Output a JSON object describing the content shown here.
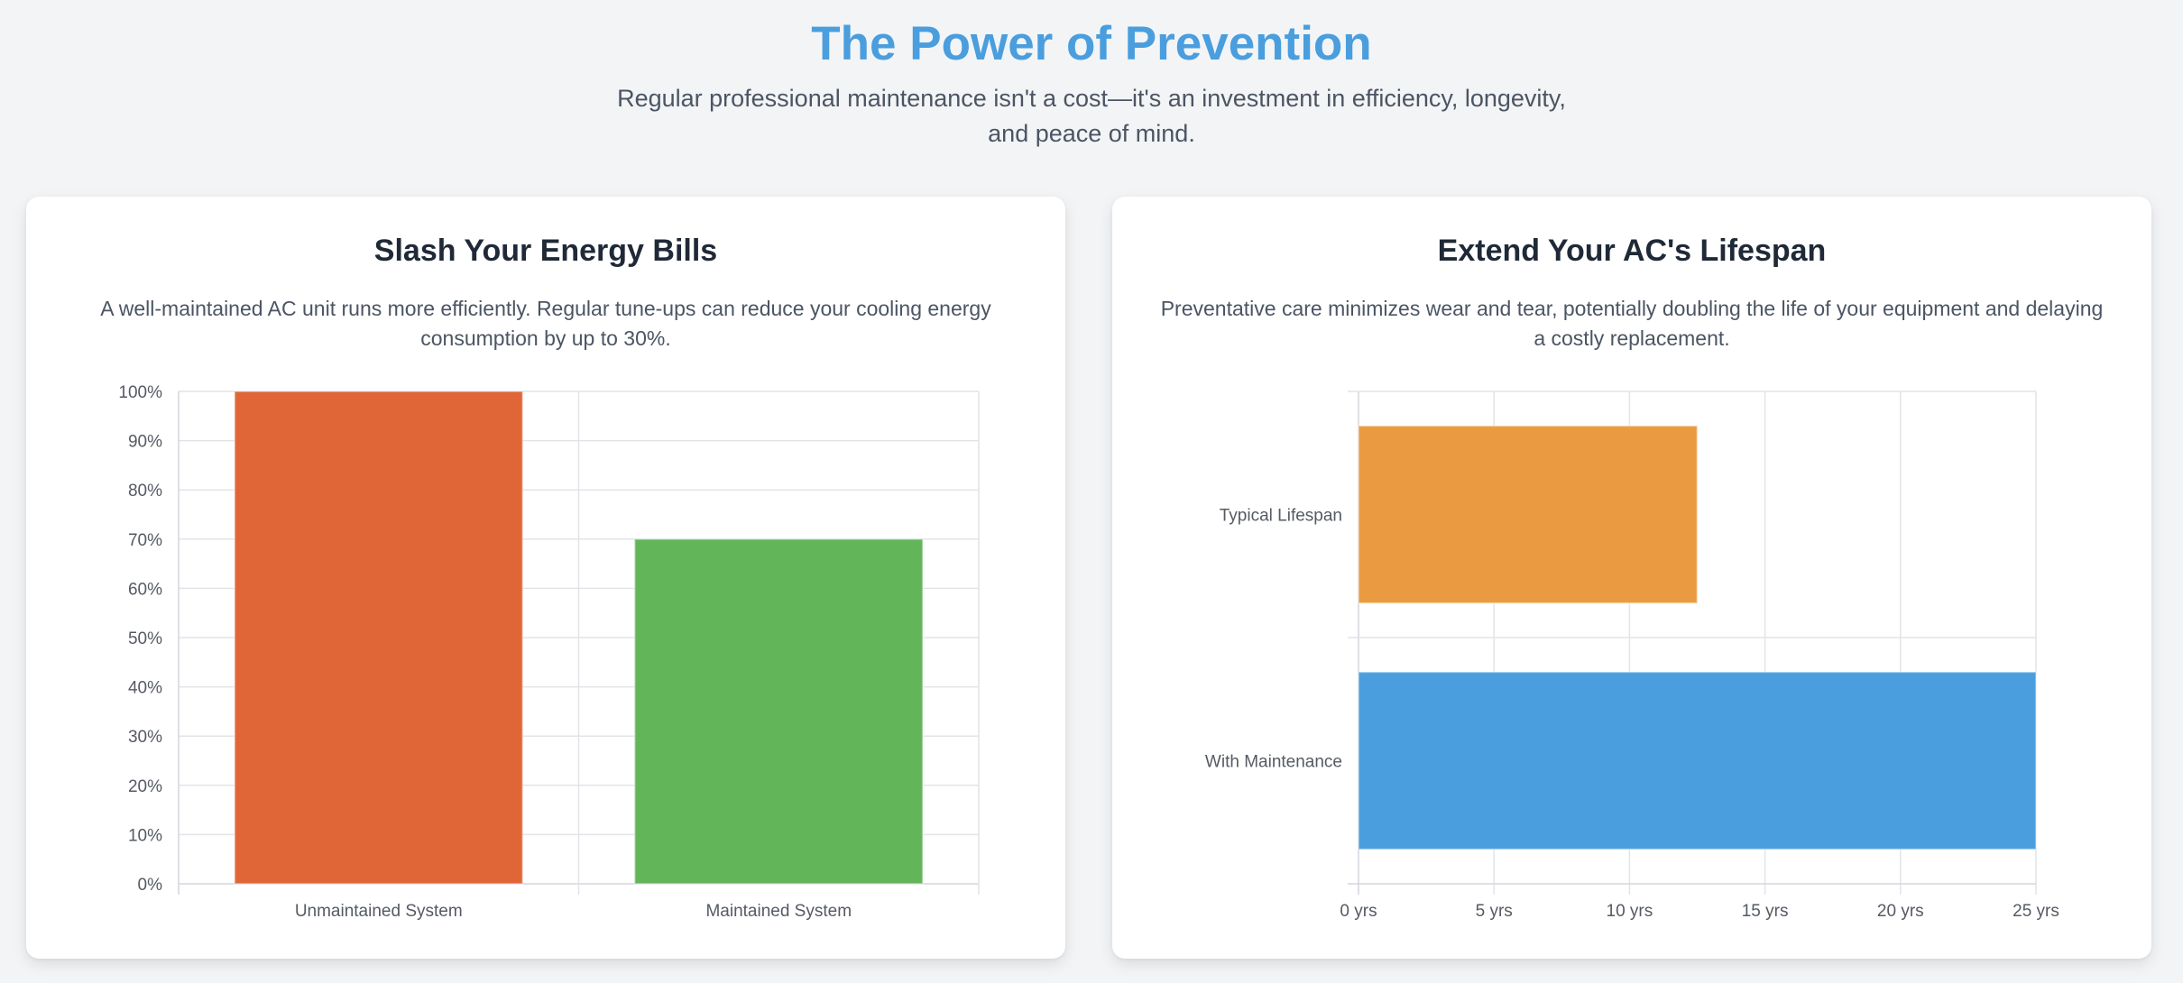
{
  "header": {
    "title": "The Power of Prevention",
    "subtitle": "Regular professional maintenance isn't a cost—it's an investment in efficiency, longevity, and peace of mind."
  },
  "cards": [
    {
      "title": "Slash Your Energy Bills",
      "description": "A well-maintained AC unit runs more efficiently. Regular tune-ups can reduce your cooling energy consumption by up to 30%."
    },
    {
      "title": "Extend Your AC's Lifespan",
      "description": "Preventative care minimizes wear and tear, potentially doubling the life of your equipment and delaying a costly replacement."
    }
  ],
  "chart_data": [
    {
      "type": "bar",
      "orientation": "vertical",
      "categories": [
        "Unmaintained System",
        "Maintained System"
      ],
      "values": [
        100,
        70
      ],
      "colors": [
        "#e06638",
        "#63b55a"
      ],
      "ylim": [
        0,
        100
      ],
      "yticks": [
        0,
        10,
        20,
        30,
        40,
        50,
        60,
        70,
        80,
        90,
        100
      ],
      "ytick_suffix": "%",
      "grid": true,
      "legend": "none"
    },
    {
      "type": "bar",
      "orientation": "horizontal",
      "categories": [
        "Typical Lifespan",
        "With Maintenance"
      ],
      "values": [
        12.5,
        25
      ],
      "colors": [
        "#ea9a40",
        "#4a9ede"
      ],
      "xlim": [
        0,
        25
      ],
      "xticks": [
        0,
        5,
        10,
        15,
        20,
        25
      ],
      "xtick_suffix": " yrs",
      "grid": true,
      "legend": "none"
    }
  ]
}
